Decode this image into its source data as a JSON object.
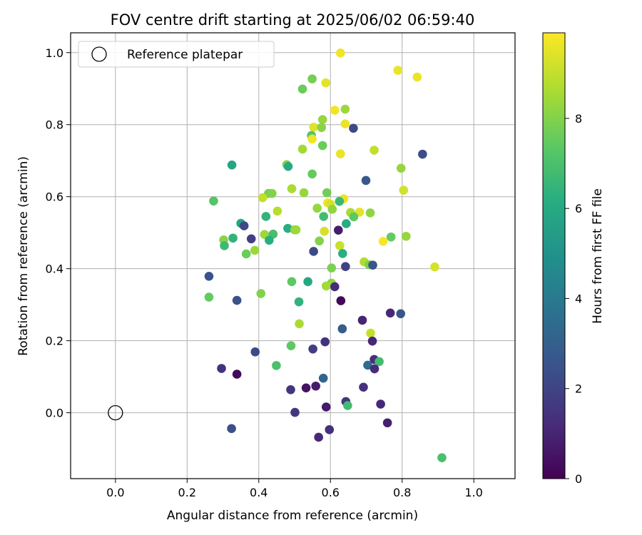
{
  "chart_data": {
    "type": "scatter",
    "title": "FOV centre drift starting at 2025/06/02 06:59:40",
    "xlabel": "Angular distance from reference (arcmin)",
    "ylabel": "Rotation from reference (arcmin)",
    "xlim": [
      -0.125,
      1.115
    ],
    "ylim": [
      -0.183,
      1.055
    ],
    "xticks": [
      "0.0",
      "0.2",
      "0.4",
      "0.6",
      "0.8",
      "1.0"
    ],
    "yticks": [
      "0.0",
      "0.2",
      "0.4",
      "0.6",
      "0.8",
      "1.0"
    ],
    "grid": true,
    "legend": {
      "placement": "top-left",
      "entries": [
        "Reference platepar"
      ]
    },
    "reference_point": {
      "x": 0.0,
      "y": 0.0,
      "marker": "open-circle"
    },
    "colorbar": {
      "label": "Hours from first FF file",
      "ticks": [
        "0",
        "2",
        "4",
        "6",
        "8"
      ],
      "range": [
        0,
        9.9
      ],
      "colormap": "viridis"
    },
    "points": [
      {
        "x": 0.628,
        "y": 0.999,
        "h": 9.7
      },
      {
        "x": 0.788,
        "y": 0.951,
        "h": 9.6
      },
      {
        "x": 0.842,
        "y": 0.932,
        "h": 9.6
      },
      {
        "x": 0.587,
        "y": 0.916,
        "h": 9.5
      },
      {
        "x": 0.549,
        "y": 0.927,
        "h": 7.8
      },
      {
        "x": 0.522,
        "y": 0.899,
        "h": 7.6
      },
      {
        "x": 0.641,
        "y": 0.843,
        "h": 8.4
      },
      {
        "x": 0.612,
        "y": 0.84,
        "h": 9.7
      },
      {
        "x": 0.578,
        "y": 0.814,
        "h": 8.3
      },
      {
        "x": 0.641,
        "y": 0.802,
        "h": 9.6
      },
      {
        "x": 0.553,
        "y": 0.793,
        "h": 9.4
      },
      {
        "x": 0.575,
        "y": 0.792,
        "h": 8.1
      },
      {
        "x": 0.664,
        "y": 0.79,
        "h": 2.2
      },
      {
        "x": 0.547,
        "y": 0.77,
        "h": 7.2
      },
      {
        "x": 0.549,
        "y": 0.76,
        "h": 9.7
      },
      {
        "x": 0.578,
        "y": 0.742,
        "h": 7.6
      },
      {
        "x": 0.522,
        "y": 0.732,
        "h": 8.5
      },
      {
        "x": 0.722,
        "y": 0.729,
        "h": 9.0
      },
      {
        "x": 0.628,
        "y": 0.719,
        "h": 9.6
      },
      {
        "x": 0.857,
        "y": 0.718,
        "h": 2.3
      },
      {
        "x": 0.325,
        "y": 0.688,
        "h": 5.8
      },
      {
        "x": 0.478,
        "y": 0.689,
        "h": 8.1
      },
      {
        "x": 0.482,
        "y": 0.684,
        "h": 6.0
      },
      {
        "x": 0.797,
        "y": 0.679,
        "h": 8.3
      },
      {
        "x": 0.549,
        "y": 0.663,
        "h": 7.5
      },
      {
        "x": 0.699,
        "y": 0.645,
        "h": 2.7
      },
      {
        "x": 0.492,
        "y": 0.622,
        "h": 8.6
      },
      {
        "x": 0.804,
        "y": 0.618,
        "h": 9.2
      },
      {
        "x": 0.526,
        "y": 0.611,
        "h": 8.3
      },
      {
        "x": 0.427,
        "y": 0.609,
        "h": 7.8
      },
      {
        "x": 0.437,
        "y": 0.609,
        "h": 8.0
      },
      {
        "x": 0.59,
        "y": 0.611,
        "h": 7.7
      },
      {
        "x": 0.411,
        "y": 0.597,
        "h": 9.0
      },
      {
        "x": 0.637,
        "y": 0.594,
        "h": 9.6
      },
      {
        "x": 0.274,
        "y": 0.588,
        "h": 7.2
      },
      {
        "x": 0.625,
        "y": 0.587,
        "h": 6.6
      },
      {
        "x": 0.592,
        "y": 0.583,
        "h": 9.7
      },
      {
        "x": 0.6,
        "y": 0.579,
        "h": 9.3
      },
      {
        "x": 0.563,
        "y": 0.568,
        "h": 8.3
      },
      {
        "x": 0.605,
        "y": 0.565,
        "h": 8.2
      },
      {
        "x": 0.452,
        "y": 0.56,
        "h": 8.8
      },
      {
        "x": 0.656,
        "y": 0.556,
        "h": 8.6
      },
      {
        "x": 0.681,
        "y": 0.557,
        "h": 9.5
      },
      {
        "x": 0.711,
        "y": 0.555,
        "h": 8.2
      },
      {
        "x": 0.42,
        "y": 0.545,
        "h": 6.4
      },
      {
        "x": 0.581,
        "y": 0.545,
        "h": 6.8
      },
      {
        "x": 0.665,
        "y": 0.544,
        "h": 7.4
      },
      {
        "x": 0.35,
        "y": 0.526,
        "h": 5.8
      },
      {
        "x": 0.644,
        "y": 0.525,
        "h": 6.1
      },
      {
        "x": 0.359,
        "y": 0.519,
        "h": 2.2
      },
      {
        "x": 0.481,
        "y": 0.512,
        "h": 6.2
      },
      {
        "x": 0.5,
        "y": 0.508,
        "h": 8.1
      },
      {
        "x": 0.504,
        "y": 0.508,
        "h": 8.4
      },
      {
        "x": 0.622,
        "y": 0.507,
        "h": 0.8
      },
      {
        "x": 0.583,
        "y": 0.504,
        "h": 9.3
      },
      {
        "x": 0.416,
        "y": 0.495,
        "h": 8.4
      },
      {
        "x": 0.44,
        "y": 0.496,
        "h": 6.9
      },
      {
        "x": 0.811,
        "y": 0.49,
        "h": 8.3
      },
      {
        "x": 0.769,
        "y": 0.488,
        "h": 7.5
      },
      {
        "x": 0.328,
        "y": 0.485,
        "h": 6.4
      },
      {
        "x": 0.302,
        "y": 0.48,
        "h": 8.1
      },
      {
        "x": 0.379,
        "y": 0.483,
        "h": 1.8
      },
      {
        "x": 0.429,
        "y": 0.479,
        "h": 6.2
      },
      {
        "x": 0.569,
        "y": 0.477,
        "h": 8.0
      },
      {
        "x": 0.747,
        "y": 0.476,
        "h": 9.8
      },
      {
        "x": 0.626,
        "y": 0.464,
        "h": 9.1
      },
      {
        "x": 0.304,
        "y": 0.464,
        "h": 6.7
      },
      {
        "x": 0.389,
        "y": 0.451,
        "h": 8.4
      },
      {
        "x": 0.365,
        "y": 0.441,
        "h": 7.6
      },
      {
        "x": 0.553,
        "y": 0.448,
        "h": 2.2
      },
      {
        "x": 0.634,
        "y": 0.442,
        "h": 6.2
      },
      {
        "x": 0.694,
        "y": 0.419,
        "h": 8.7
      },
      {
        "x": 0.708,
        "y": 0.411,
        "h": 7.9
      },
      {
        "x": 0.718,
        "y": 0.41,
        "h": 2.6
      },
      {
        "x": 0.642,
        "y": 0.406,
        "h": 1.9
      },
      {
        "x": 0.603,
        "y": 0.402,
        "h": 7.9
      },
      {
        "x": 0.891,
        "y": 0.405,
        "h": 9.3
      },
      {
        "x": 0.261,
        "y": 0.379,
        "h": 2.5
      },
      {
        "x": 0.492,
        "y": 0.364,
        "h": 7.4
      },
      {
        "x": 0.537,
        "y": 0.364,
        "h": 5.9
      },
      {
        "x": 0.603,
        "y": 0.36,
        "h": 8.2
      },
      {
        "x": 0.588,
        "y": 0.352,
        "h": 8.5
      },
      {
        "x": 0.612,
        "y": 0.35,
        "h": 1.2
      },
      {
        "x": 0.406,
        "y": 0.331,
        "h": 8.0
      },
      {
        "x": 0.261,
        "y": 0.321,
        "h": 7.5
      },
      {
        "x": 0.339,
        "y": 0.312,
        "h": 2.4
      },
      {
        "x": 0.512,
        "y": 0.308,
        "h": 6.4
      },
      {
        "x": 0.629,
        "y": 0.311,
        "h": 0.2
      },
      {
        "x": 0.796,
        "y": 0.275,
        "h": 2.6
      },
      {
        "x": 0.767,
        "y": 0.277,
        "h": 1.1
      },
      {
        "x": 0.689,
        "y": 0.257,
        "h": 1.0
      },
      {
        "x": 0.513,
        "y": 0.247,
        "h": 8.6
      },
      {
        "x": 0.633,
        "y": 0.233,
        "h": 2.9
      },
      {
        "x": 0.712,
        "y": 0.221,
        "h": 9.0
      },
      {
        "x": 0.717,
        "y": 0.199,
        "h": 1.1
      },
      {
        "x": 0.585,
        "y": 0.197,
        "h": 1.4
      },
      {
        "x": 0.49,
        "y": 0.186,
        "h": 7.4
      },
      {
        "x": 0.551,
        "y": 0.177,
        "h": 1.8
      },
      {
        "x": 0.39,
        "y": 0.169,
        "h": 2.2
      },
      {
        "x": 0.722,
        "y": 0.148,
        "h": 1.3
      },
      {
        "x": 0.736,
        "y": 0.142,
        "h": 6.8
      },
      {
        "x": 0.704,
        "y": 0.132,
        "h": 3.4
      },
      {
        "x": 0.449,
        "y": 0.131,
        "h": 7.0
      },
      {
        "x": 0.723,
        "y": 0.122,
        "h": 1.2
      },
      {
        "x": 0.296,
        "y": 0.123,
        "h": 1.4
      },
      {
        "x": 0.339,
        "y": 0.107,
        "h": 0.2
      },
      {
        "x": 0.58,
        "y": 0.096,
        "h": 3.2
      },
      {
        "x": 0.692,
        "y": 0.071,
        "h": 1.4
      },
      {
        "x": 0.489,
        "y": 0.064,
        "h": 1.5
      },
      {
        "x": 0.532,
        "y": 0.069,
        "h": 0.5
      },
      {
        "x": 0.559,
        "y": 0.074,
        "h": 0.8
      },
      {
        "x": 0.643,
        "y": 0.031,
        "h": 1.5
      },
      {
        "x": 0.648,
        "y": 0.02,
        "h": 6.8
      },
      {
        "x": 0.74,
        "y": 0.024,
        "h": 1.1
      },
      {
        "x": 0.588,
        "y": 0.016,
        "h": 0.7
      },
      {
        "x": 0.501,
        "y": 0.001,
        "h": 1.6
      },
      {
        "x": 0.759,
        "y": -0.028,
        "h": 0.9
      },
      {
        "x": 0.324,
        "y": -0.044,
        "h": 2.4
      },
      {
        "x": 0.597,
        "y": -0.047,
        "h": 1.3
      },
      {
        "x": 0.567,
        "y": -0.068,
        "h": 1.1
      },
      {
        "x": 0.911,
        "y": -0.125,
        "h": 7.0
      }
    ]
  }
}
